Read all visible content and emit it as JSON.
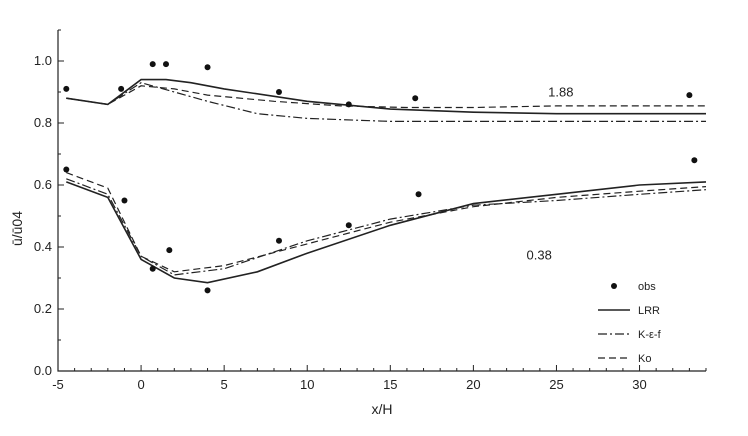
{
  "chart_data": {
    "type": "line",
    "xlabel": "x/H",
    "ylabel": "ū/ū04",
    "xlim": [
      -5,
      34
    ],
    "ylim": [
      0,
      1.1
    ],
    "xticks": [
      -5,
      0,
      5,
      10,
      15,
      20,
      25,
      30
    ],
    "xtick_labels": [
      "-5",
      "0",
      "5",
      "10",
      "15",
      "20",
      "25",
      "30"
    ],
    "yticks": [
      0,
      0.2,
      0.4,
      0.6,
      0.8,
      1.0
    ],
    "ytick_labels": [
      "0.0",
      "0.2",
      "0.4",
      "0.6",
      "0.8",
      "1.0"
    ],
    "grid": false,
    "legend_position": "bottom-right",
    "annotations": [
      {
        "text": "1.88",
        "x": 24.5,
        "y": 0.885
      },
      {
        "text": "0.38",
        "x": 23.2,
        "y": 0.36
      }
    ],
    "series": [
      {
        "name": "obs",
        "style": "points",
        "x": [
          -4.5,
          -1.2,
          0.7,
          1.5,
          4.0,
          8.3,
          12.5,
          16.5,
          33.0
        ],
        "y": [
          0.91,
          0.91,
          0.99,
          0.99,
          0.98,
          0.9,
          0.86,
          0.88,
          0.89
        ]
      },
      {
        "name": "obs",
        "style": "points",
        "x": [
          -4.5,
          -1.0,
          0.7,
          1.7,
          4.0,
          8.3,
          12.5,
          16.7,
          33.3
        ],
        "y": [
          0.65,
          0.55,
          0.33,
          0.39,
          0.26,
          0.42,
          0.47,
          0.57,
          0.68
        ]
      },
      {
        "name": "LRR",
        "style": "solid",
        "x": [
          -4.5,
          -2.0,
          0.0,
          1.5,
          3.0,
          5.0,
          10.0,
          15.0,
          20.0,
          25.0,
          30.0,
          34.0
        ],
        "y": [
          0.88,
          0.86,
          0.94,
          0.94,
          0.93,
          0.91,
          0.87,
          0.845,
          0.835,
          0.83,
          0.83,
          0.83
        ]
      },
      {
        "name": "K-ε-f",
        "style": "dashdot",
        "x": [
          -4.5,
          -2.0,
          0.0,
          2.0,
          4.0,
          7.0,
          10.0,
          15.0,
          20.0,
          25.0,
          30.0,
          34.0
        ],
        "y": [
          0.88,
          0.86,
          0.93,
          0.9,
          0.87,
          0.83,
          0.815,
          0.805,
          0.805,
          0.805,
          0.805,
          0.805
        ]
      },
      {
        "name": "Ko",
        "style": "dashed",
        "x": [
          -4.5,
          -2.0,
          0.0,
          2.0,
          4.0,
          8.0,
          12.0,
          16.0,
          20.0,
          25.0,
          30.0,
          34.0
        ],
        "y": [
          0.88,
          0.86,
          0.92,
          0.91,
          0.89,
          0.87,
          0.855,
          0.85,
          0.85,
          0.855,
          0.855,
          0.855
        ]
      },
      {
        "name": "LRR",
        "style": "solid",
        "x": [
          -4.5,
          -2.0,
          0.0,
          2.0,
          4.0,
          7.0,
          10.0,
          15.0,
          20.0,
          25.0,
          30.0,
          34.0
        ],
        "y": [
          0.61,
          0.56,
          0.36,
          0.3,
          0.285,
          0.32,
          0.38,
          0.47,
          0.54,
          0.57,
          0.6,
          0.61
        ]
      },
      {
        "name": "K-ε-f",
        "style": "dashdot",
        "x": [
          -4.5,
          -2.0,
          0.0,
          2.0,
          5.0,
          10.0,
          15.0,
          20.0,
          25.0,
          30.0,
          34.0
        ],
        "y": [
          0.62,
          0.57,
          0.37,
          0.31,
          0.33,
          0.42,
          0.49,
          0.535,
          0.55,
          0.57,
          0.585
        ]
      },
      {
        "name": "Ko",
        "style": "dashed",
        "x": [
          -4.5,
          -2.0,
          0.0,
          2.0,
          5.0,
          10.0,
          15.0,
          20.0,
          25.0,
          30.0,
          34.0
        ],
        "y": [
          0.64,
          0.59,
          0.37,
          0.32,
          0.34,
          0.41,
          0.48,
          0.53,
          0.56,
          0.58,
          0.595
        ]
      }
    ]
  }
}
